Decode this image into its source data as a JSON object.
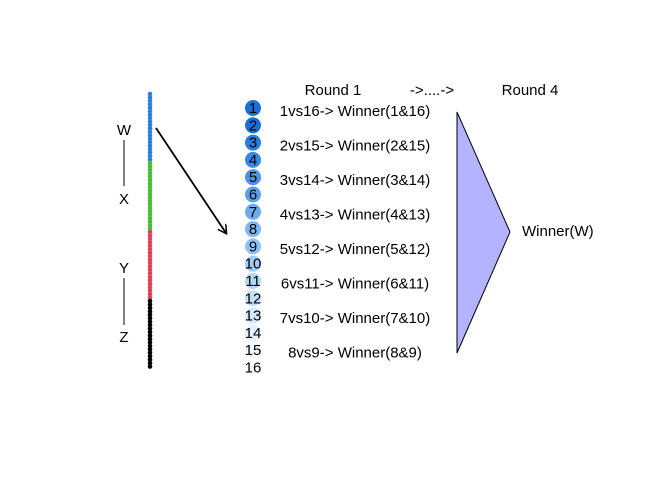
{
  "side_labels": [
    "W",
    "X",
    "Y",
    "Z"
  ],
  "dot_colors": {
    "W": "#2f7fd8",
    "X": "#4cbb38",
    "Y": "#d9445c",
    "Z": "#000000"
  },
  "dot_counts": {
    "W": 20,
    "X": 20,
    "Y": 20,
    "Z": 20
  },
  "header": {
    "round1": "Round 1",
    "middle": "->....->",
    "round4": "Round 4"
  },
  "seeds": [
    "1",
    "2",
    "3",
    "4",
    "5",
    "6",
    "7",
    "8",
    "9",
    "10",
    "11",
    "12",
    "13",
    "14",
    "15",
    "16"
  ],
  "seed_bubble_colors": [
    "#1a6fd6",
    "#1a6fd6",
    "#2a7cdd",
    "#3a88e2",
    "#4b94e7",
    "#5ca0eb",
    "#6dacef",
    "#7eb7f3",
    "#8fc2f5",
    "#a0cdf8",
    "#b1d7fa",
    "#c2e1fc",
    "#d3eafd",
    "#e3f2fe",
    "#f3f9ff",
    "#ffffff"
  ],
  "matchups": [
    "1vs16-> Winner(1&16)",
    "2vs15-> Winner(2&15)",
    "3vs14-> Winner(3&14)",
    "4vs13-> Winner(4&13)",
    "5vs12-> Winner(5&12)",
    "6vs11-> Winner(6&11)",
    "7vs10-> Winner(7&10)",
    "8vs9-> Winner(8&9)"
  ],
  "winner_label": "Winner(W)",
  "funnel_color": "#b3b3ff"
}
